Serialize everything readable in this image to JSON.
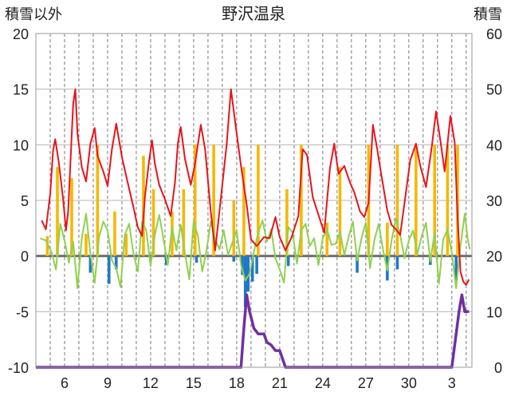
{
  "chart_data": {
    "type": "line",
    "title": "野沢温泉",
    "left_axis_label": "積雪以外",
    "right_axis_label": "積雪",
    "left_ylim": [
      -10,
      20
    ],
    "right_ylim": [
      0,
      60
    ],
    "left_ticks": [
      "20",
      "15",
      "10",
      "5",
      "0",
      "-5",
      "-10"
    ],
    "right_ticks": [
      "60",
      "50",
      "40",
      "30",
      "20",
      "10",
      "0"
    ],
    "x_tick_labels": [
      "6",
      "9",
      "12",
      "15",
      "18",
      "21",
      "24",
      "27",
      "30",
      "3"
    ],
    "grid": "dashed vertical lines daily, solid horizontal lines",
    "legend": "none",
    "colors": {
      "max_temp": "#e8141c",
      "min_temp": "#1f78c8",
      "mean_temp": "#8fd14f",
      "precip": "#f5b800",
      "snow_depth": "#7030a0",
      "zero_line": "#6f6f6f"
    },
    "series": [
      {
        "key": "precip",
        "axis": "left",
        "kind": "bars_from_zero",
        "points": [
          [
            4.8,
            1.8
          ],
          [
            5.5,
            8
          ],
          [
            6.5,
            7
          ],
          [
            7.5,
            2
          ],
          [
            8.3,
            10
          ],
          [
            9.5,
            4
          ],
          [
            10.3,
            2
          ],
          [
            11.5,
            9
          ],
          [
            12.2,
            6
          ],
          [
            13.5,
            4
          ],
          [
            14.3,
            6
          ],
          [
            15.1,
            10
          ],
          [
            16.4,
            10
          ],
          [
            17.8,
            5
          ],
          [
            18.5,
            8
          ],
          [
            19.5,
            10
          ],
          [
            21.5,
            6
          ],
          [
            22.5,
            10
          ],
          [
            24.3,
            3
          ],
          [
            25.2,
            8
          ],
          [
            27.2,
            10
          ],
          [
            28.5,
            3
          ],
          [
            29.2,
            10
          ],
          [
            30.5,
            10
          ],
          [
            31.8,
            10
          ],
          [
            32.7,
            10
          ],
          [
            33.4,
            10
          ]
        ]
      },
      {
        "key": "min_temp",
        "axis": "left",
        "kind": "bars_from_zero",
        "points": [
          [
            7.8,
            -1.5
          ],
          [
            9.1,
            -2.5
          ],
          [
            9.6,
            -1.2
          ],
          [
            13.1,
            -0.8
          ],
          [
            15.2,
            -0.6
          ],
          [
            17.8,
            -0.5
          ],
          [
            18.4,
            -1.7
          ],
          [
            18.6,
            -4.6
          ],
          [
            18.8,
            -3.2
          ],
          [
            19.1,
            -2.3
          ],
          [
            19.4,
            -1.6
          ],
          [
            21.6,
            -0.9
          ],
          [
            26.4,
            -1.5
          ],
          [
            28.5,
            -2.2
          ],
          [
            29.2,
            -1.2
          ],
          [
            31.5,
            -0.8
          ],
          [
            33.3,
            -2.2
          ]
        ]
      },
      {
        "key": "max_temp",
        "axis": "left",
        "kind": "line",
        "points": [
          [
            4.4,
            3.2
          ],
          [
            4.7,
            2.4
          ],
          [
            5.0,
            5.6
          ],
          [
            5.2,
            9.5
          ],
          [
            5.35,
            10.5
          ],
          [
            5.6,
            8.4
          ],
          [
            5.9,
            5.1
          ],
          [
            6.1,
            2.3
          ],
          [
            6.25,
            4
          ],
          [
            6.6,
            13.7
          ],
          [
            6.75,
            15
          ],
          [
            6.9,
            11
          ],
          [
            7.2,
            8
          ],
          [
            7.5,
            6.7
          ],
          [
            7.8,
            10.1
          ],
          [
            8.1,
            11.5
          ],
          [
            8.3,
            9
          ],
          [
            8.7,
            7.6
          ],
          [
            9.0,
            6.3
          ],
          [
            9.3,
            9.6
          ],
          [
            9.6,
            11.9
          ],
          [
            10.0,
            8.9
          ],
          [
            10.4,
            6.6
          ],
          [
            10.8,
            4.4
          ],
          [
            11.1,
            2.6
          ],
          [
            11.4,
            1.8
          ],
          [
            11.6,
            5.3
          ],
          [
            11.9,
            8.6
          ],
          [
            12.1,
            10.4
          ],
          [
            12.3,
            8.3
          ],
          [
            12.6,
            6.4
          ],
          [
            13.0,
            5.1
          ],
          [
            13.4,
            3.6
          ],
          [
            13.7,
            6.6
          ],
          [
            13.9,
            10.1
          ],
          [
            14.1,
            11.6
          ],
          [
            14.4,
            8.7
          ],
          [
            14.8,
            6.4
          ],
          [
            15.1,
            8.3
          ],
          [
            15.5,
            11.8
          ],
          [
            15.8,
            9.6
          ],
          [
            16.2,
            3.9
          ],
          [
            16.5,
            0.5
          ],
          [
            16.9,
            5.2
          ],
          [
            17.3,
            10
          ],
          [
            17.6,
            15
          ],
          [
            17.9,
            12
          ],
          [
            18.3,
            8.1
          ],
          [
            18.7,
            4.6
          ],
          [
            19.0,
            1.5
          ],
          [
            19.4,
            0.9
          ],
          [
            19.9,
            1.7
          ],
          [
            20.3,
            1.6
          ],
          [
            20.7,
            3.5
          ],
          [
            21.0,
            1.7
          ],
          [
            21.4,
            0.5
          ],
          [
            21.8,
            1.6
          ],
          [
            22.3,
            3.6
          ],
          [
            22.6,
            9.6
          ],
          [
            22.9,
            9.1
          ],
          [
            23.3,
            5.3
          ],
          [
            23.6,
            4.1
          ],
          [
            24.1,
            2.1
          ],
          [
            24.5,
            7.9
          ],
          [
            24.8,
            10.1
          ],
          [
            25.1,
            7.4
          ],
          [
            25.5,
            8.1
          ],
          [
            25.9,
            6.6
          ],
          [
            26.2,
            5.7
          ],
          [
            26.6,
            4
          ],
          [
            26.9,
            3.5
          ],
          [
            27.2,
            4.8
          ],
          [
            27.5,
            11.8
          ],
          [
            27.8,
            9.6
          ],
          [
            28.1,
            7.2
          ],
          [
            28.5,
            4.1
          ],
          [
            28.8,
            2.8
          ],
          [
            29.1,
            2.4
          ],
          [
            29.4,
            1.9
          ],
          [
            29.8,
            5.7
          ],
          [
            30.1,
            8.6
          ],
          [
            30.5,
            10.1
          ],
          [
            30.8,
            8.1
          ],
          [
            31.2,
            6.2
          ],
          [
            31.6,
            9.8
          ],
          [
            31.9,
            13
          ],
          [
            32.2,
            10.4
          ],
          [
            32.5,
            7.6
          ],
          [
            32.9,
            12.6
          ],
          [
            33.2,
            10.2
          ],
          [
            33.4,
            3.5
          ],
          [
            33.6,
            -1.4
          ],
          [
            33.8,
            -2.3
          ],
          [
            34.0,
            -2.6
          ],
          [
            34.2,
            -2.1
          ]
        ]
      },
      {
        "key": "mean_temp",
        "axis": "left",
        "kind": "line",
        "points": [
          [
            4.3,
            1.6
          ],
          [
            4.7,
            1.4
          ],
          [
            5.1,
            0.3
          ],
          [
            5.4,
            -1.2
          ],
          [
            5.7,
            2.9
          ],
          [
            6.0,
            1.4
          ],
          [
            6.3,
            -0.6
          ],
          [
            6.6,
            1.3
          ],
          [
            6.9,
            -2.9
          ],
          [
            7.2,
            1.6
          ],
          [
            7.5,
            3.8
          ],
          [
            7.8,
            0.2
          ],
          [
            8.1,
            -2.4
          ],
          [
            8.4,
            1.7
          ],
          [
            8.7,
            3.1
          ],
          [
            9.0,
            2.3
          ],
          [
            9.3,
            -0.4
          ],
          [
            9.6,
            -1.1
          ],
          [
            9.9,
            -2.8
          ],
          [
            10.2,
            1.9
          ],
          [
            10.5,
            2.9
          ],
          [
            10.8,
            0.2
          ],
          [
            11.1,
            -1.4
          ],
          [
            11.4,
            3.1
          ],
          [
            11.7,
            2.3
          ],
          [
            12.0,
            -0.9
          ],
          [
            12.3,
            1.9
          ],
          [
            12.6,
            3.7
          ],
          [
            12.9,
            1.5
          ],
          [
            13.2,
            -0.8
          ],
          [
            13.5,
            2.6
          ],
          [
            13.8,
            0.5
          ],
          [
            14.1,
            2.8
          ],
          [
            14.4,
            0.2
          ],
          [
            14.7,
            -2.1
          ],
          [
            15.0,
            3.1
          ],
          [
            15.3,
            1.8
          ],
          [
            15.6,
            -1.4
          ],
          [
            15.9,
            0.5
          ],
          [
            16.2,
            3.1
          ],
          [
            16.5,
            1.5
          ],
          [
            16.8,
            0.6
          ],
          [
            17.1,
            2.3
          ],
          [
            17.4,
            0.1
          ],
          [
            17.7,
            1.2
          ],
          [
            18.0,
            2.3
          ],
          [
            18.3,
            -0.8
          ],
          [
            18.6,
            -2.2
          ],
          [
            18.9,
            -1.6
          ],
          [
            19.2,
            0.4
          ],
          [
            19.5,
            2.1
          ],
          [
            19.8,
            3.2
          ],
          [
            20.1,
            1.3
          ],
          [
            20.4,
            2.4
          ],
          [
            20.7,
            -0.2
          ],
          [
            21.0,
            -1.2
          ],
          [
            21.3,
            -2.4
          ],
          [
            21.6,
            2.6
          ],
          [
            21.9,
            2.1
          ],
          [
            22.2,
            -0.7
          ],
          [
            22.5,
            2.3
          ],
          [
            22.8,
            2.9
          ],
          [
            23.1,
            0.9
          ],
          [
            23.4,
            1.6
          ],
          [
            23.7,
            -0.8
          ],
          [
            24.0,
            1.6
          ],
          [
            24.3,
            2.4
          ],
          [
            24.6,
            1
          ],
          [
            24.9,
            1.1
          ],
          [
            25.2,
            2.2
          ],
          [
            25.5,
            0.1
          ],
          [
            25.8,
            1.7
          ],
          [
            26.1,
            3.1
          ],
          [
            26.4,
            -0.4
          ],
          [
            26.7,
            1.6
          ],
          [
            27.0,
            3
          ],
          [
            27.3,
            -1.1
          ],
          [
            27.6,
            1.4
          ],
          [
            27.9,
            2.9
          ],
          [
            28.2,
            0.6
          ],
          [
            28.5,
            -1.3
          ],
          [
            28.8,
            1.4
          ],
          [
            29.1,
            3.4
          ],
          [
            29.4,
            1.9
          ],
          [
            29.7,
            -0.2
          ],
          [
            30.0,
            1.4
          ],
          [
            30.3,
            2.3
          ],
          [
            30.6,
            0.2
          ],
          [
            30.9,
            1.8
          ],
          [
            31.2,
            3
          ],
          [
            31.5,
            -0.5
          ],
          [
            31.8,
            2.1
          ],
          [
            32.1,
            -2.5
          ],
          [
            32.4,
            1.5
          ],
          [
            32.7,
            2.4
          ],
          [
            33.0,
            0.3
          ],
          [
            33.3,
            -2.9
          ],
          [
            33.6,
            0.9
          ],
          [
            33.9,
            3.8
          ],
          [
            34.1,
            1.6
          ],
          [
            34.25,
            0.6
          ]
        ]
      },
      {
        "key": "snow_depth",
        "axis": "right",
        "kind": "line",
        "points": [
          [
            4.0,
            0
          ],
          [
            18.0,
            0
          ],
          [
            18.3,
            0
          ],
          [
            18.5,
            7
          ],
          [
            18.7,
            13
          ],
          [
            18.9,
            10
          ],
          [
            19.2,
            7
          ],
          [
            19.5,
            6
          ],
          [
            19.9,
            6
          ],
          [
            20.1,
            4.5
          ],
          [
            20.4,
            4
          ],
          [
            20.7,
            3
          ],
          [
            21.0,
            3
          ],
          [
            21.2,
            1.5
          ],
          [
            21.4,
            0
          ],
          [
            22.0,
            0
          ],
          [
            33.0,
            0
          ],
          [
            33.25,
            5
          ],
          [
            33.5,
            10
          ],
          [
            33.7,
            13
          ],
          [
            33.9,
            10
          ],
          [
            34.2,
            10
          ]
        ]
      }
    ]
  }
}
